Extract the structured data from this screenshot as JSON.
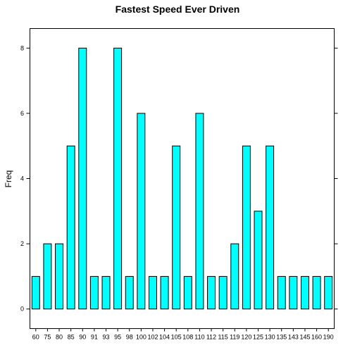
{
  "chart_data": {
    "type": "bar",
    "title": "Fastest Speed Ever Driven",
    "xlabel": "",
    "ylabel": "Freq",
    "categories": [
      "60",
      "75",
      "80",
      "85",
      "90",
      "91",
      "93",
      "95",
      "98",
      "100",
      "102",
      "104",
      "105",
      "108",
      "110",
      "112",
      "115",
      "119",
      "120",
      "125",
      "130",
      "135",
      "143",
      "145",
      "160",
      "190"
    ],
    "values": [
      1,
      2,
      2,
      5,
      8,
      1,
      1,
      8,
      1,
      6,
      1,
      1,
      5,
      1,
      6,
      1,
      1,
      2,
      5,
      3,
      5,
      1,
      1,
      1,
      1,
      1
    ],
    "ylim": [
      -0.6,
      8.6
    ],
    "yticks": [
      0,
      2,
      4,
      6,
      8
    ],
    "grid": false,
    "bar_color": "#00ffff",
    "edge_color": "#000000"
  }
}
